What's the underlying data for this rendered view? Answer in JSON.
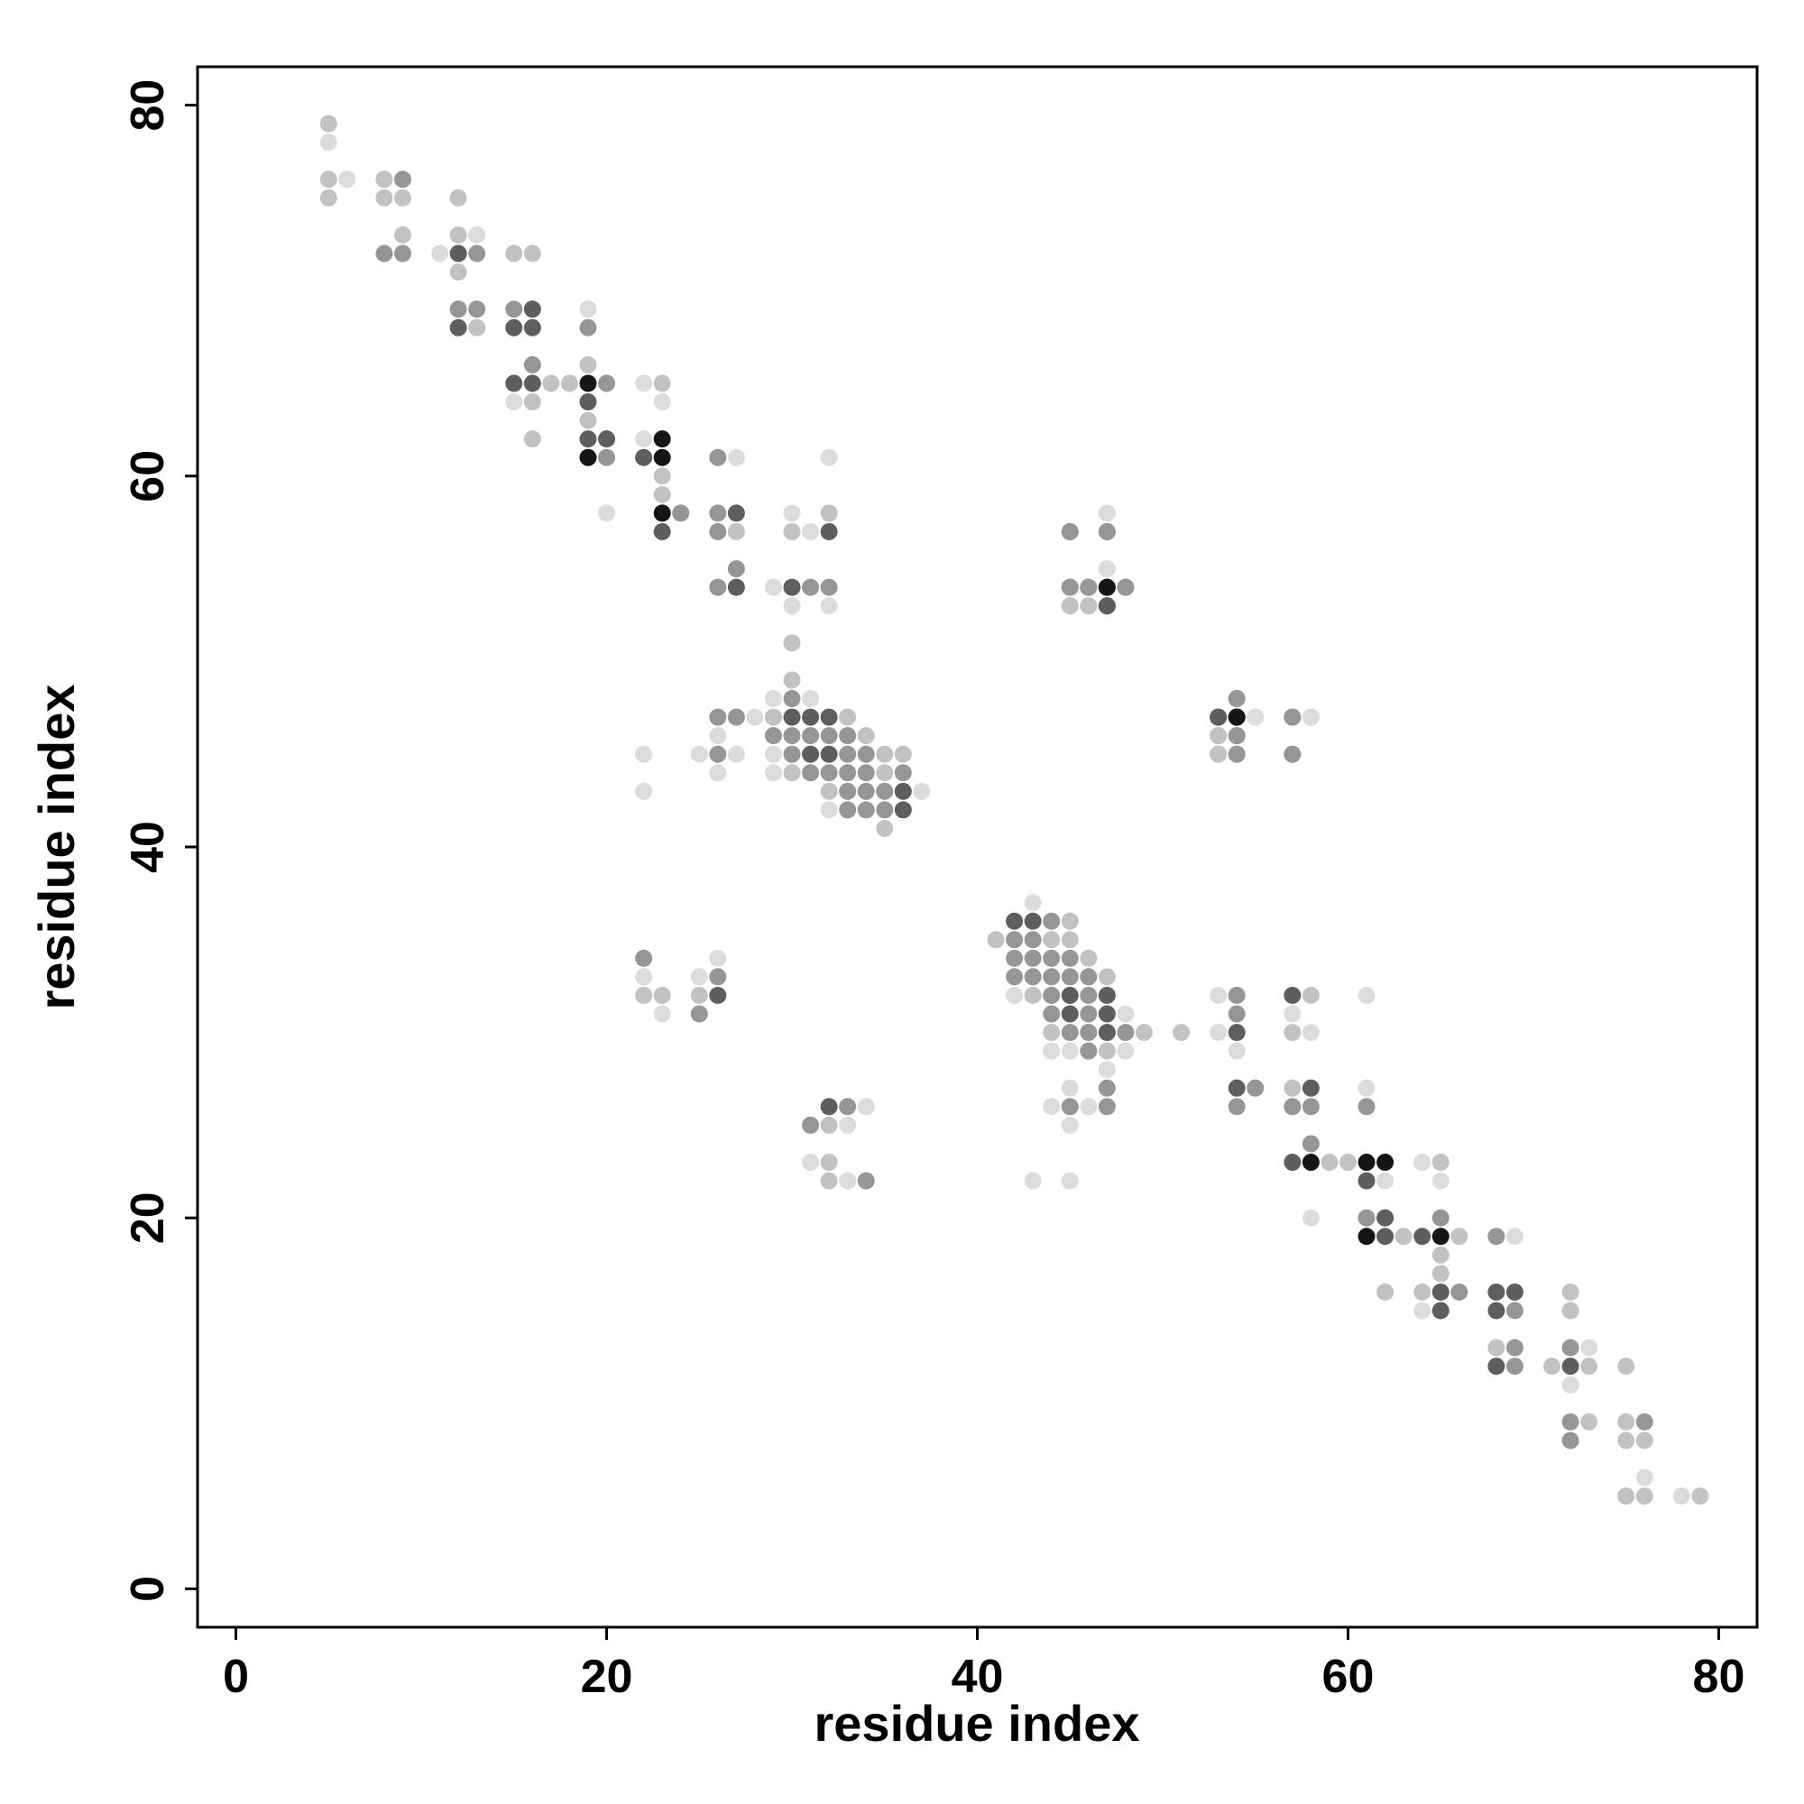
{
  "chart_data": {
    "type": "scatter",
    "x_label": "residue index",
    "y_label": "residue index",
    "xlim": [
      -2.07,
      82.07
    ],
    "ylim": [
      -2.07,
      82.07
    ],
    "xticks": [
      0,
      20,
      40,
      60,
      80
    ],
    "yticks": [
      0,
      20,
      40,
      60,
      80
    ],
    "grid": false,
    "series": [
      {
        "color": "#dcdcdc",
        "x": [
          5,
          6,
          13,
          11,
          19,
          22,
          15,
          23,
          22,
          27,
          32,
          20,
          30,
          47,
          31,
          47,
          29,
          30,
          32,
          29,
          31,
          28,
          55,
          58,
          26,
          22,
          25,
          27,
          29,
          26,
          29,
          22,
          37,
          32,
          26,
          22,
          25,
          23,
          78,
          76,
          73,
          72,
          69,
          65,
          64,
          64,
          62,
          61,
          61,
          58,
          58,
          58,
          57,
          55,
          54,
          53,
          53,
          48,
          48,
          47,
          47,
          47,
          46,
          45,
          45,
          45,
          45,
          44,
          44,
          43,
          43,
          42,
          34,
          33,
          33,
          31
        ],
        "y": [
          78,
          76,
          73,
          72,
          69,
          65,
          64,
          64,
          62,
          61,
          61,
          58,
          58,
          58,
          57,
          55,
          54,
          53,
          53,
          48,
          48,
          47,
          47,
          47,
          46,
          45,
          45,
          45,
          45,
          44,
          44,
          43,
          43,
          42,
          34,
          33,
          33,
          31,
          5,
          6,
          13,
          11,
          19,
          22,
          15,
          23,
          22,
          27,
          32,
          20,
          30,
          47,
          31,
          47,
          29,
          30,
          32,
          29,
          31,
          28,
          55,
          58,
          26,
          22,
          25,
          27,
          29,
          26,
          29,
          22,
          37,
          32,
          26,
          22,
          25,
          23
        ]
      },
      {
        "color": "#c2c2c2",
        "x": [
          5,
          5,
          8,
          5,
          8,
          9,
          12,
          9,
          12,
          15,
          16,
          12,
          13,
          19,
          17,
          18,
          23,
          16,
          19,
          16,
          23,
          23,
          32,
          27,
          30,
          45,
          46,
          30,
          30,
          29,
          33,
          34,
          53,
          35,
          36,
          53,
          30,
          35,
          32,
          35,
          22,
          23,
          25,
          79,
          76,
          76,
          75,
          75,
          75,
          75,
          73,
          73,
          72,
          72,
          71,
          68,
          66,
          65,
          65,
          65,
          64,
          63,
          62,
          60,
          59,
          58,
          57,
          57,
          53,
          53,
          51,
          49,
          47,
          47,
          46,
          46,
          45,
          45,
          45,
          44,
          44,
          43,
          41,
          32,
          32,
          32
        ],
        "y": [
          79,
          76,
          76,
          75,
          75,
          75,
          75,
          73,
          73,
          72,
          72,
          71,
          68,
          66,
          65,
          65,
          65,
          64,
          63,
          62,
          60,
          59,
          58,
          57,
          57,
          53,
          53,
          51,
          49,
          47,
          47,
          46,
          46,
          45,
          45,
          45,
          44,
          44,
          43,
          41,
          32,
          32,
          32,
          5,
          5,
          8,
          5,
          8,
          9,
          12,
          9,
          12,
          15,
          16,
          12,
          13,
          19,
          17,
          18,
          23,
          16,
          19,
          16,
          23,
          23,
          32,
          27,
          30,
          45,
          46,
          30,
          30,
          29,
          33,
          34,
          53,
          35,
          36,
          53,
          30,
          35,
          32,
          35,
          22,
          23,
          25
        ]
      },
      {
        "color": "#969696",
        "x": [
          9,
          8,
          9,
          13,
          12,
          13,
          15,
          19,
          16,
          20,
          20,
          26,
          24,
          26,
          26,
          45,
          47,
          27,
          26,
          31,
          32,
          45,
          46,
          48,
          30,
          54,
          26,
          27,
          57,
          29,
          30,
          31,
          32,
          33,
          54,
          26,
          30,
          33,
          34,
          54,
          57,
          31,
          32,
          33,
          34,
          36,
          33,
          34,
          35,
          33,
          34,
          35,
          22,
          26,
          25,
          76,
          72,
          72,
          72,
          69,
          69,
          69,
          68,
          66,
          65,
          61,
          61,
          58,
          58,
          57,
          57,
          57,
          55,
          54,
          54,
          54,
          54,
          54,
          54,
          48,
          48,
          47,
          47,
          47,
          46,
          46,
          46,
          46,
          46,
          46,
          45,
          45,
          45,
          45,
          45,
          45,
          44,
          44,
          44,
          44,
          44,
          43,
          43,
          43,
          42,
          42,
          42,
          34,
          33,
          31
        ],
        "y": [
          76,
          72,
          72,
          72,
          69,
          69,
          69,
          68,
          66,
          65,
          61,
          61,
          58,
          58,
          57,
          57,
          57,
          55,
          54,
          54,
          54,
          54,
          54,
          54,
          48,
          48,
          47,
          47,
          47,
          46,
          46,
          46,
          46,
          46,
          46,
          45,
          45,
          45,
          45,
          45,
          45,
          44,
          44,
          44,
          44,
          44,
          43,
          43,
          43,
          42,
          42,
          42,
          34,
          33,
          31,
          9,
          8,
          9,
          13,
          12,
          13,
          15,
          19,
          16,
          20,
          20,
          26,
          24,
          26,
          26,
          45,
          47,
          27,
          26,
          31,
          32,
          45,
          46,
          48,
          30,
          54,
          26,
          27,
          57,
          29,
          30,
          31,
          32,
          33,
          54,
          26,
          30,
          33,
          34,
          54,
          57,
          31,
          32,
          33,
          34,
          36,
          33,
          34,
          35,
          33,
          34,
          35,
          22,
          26,
          25
        ]
      },
      {
        "color": "#5e5e5e",
        "x": [
          12,
          16,
          12,
          15,
          16,
          15,
          16,
          19,
          19,
          20,
          22,
          27,
          23,
          32,
          27,
          30,
          47,
          30,
          31,
          32,
          53,
          31,
          32,
          36,
          36,
          26,
          72,
          69,
          68,
          68,
          68,
          65,
          65,
          64,
          62,
          62,
          61,
          58,
          57,
          57,
          54,
          54,
          53,
          47,
          47,
          47,
          47,
          45,
          45,
          43,
          42,
          32
        ],
        "y": [
          72,
          69,
          68,
          68,
          68,
          65,
          65,
          64,
          62,
          62,
          61,
          58,
          57,
          57,
          54,
          54,
          53,
          47,
          47,
          47,
          47,
          45,
          45,
          43,
          42,
          32,
          12,
          16,
          12,
          15,
          16,
          15,
          16,
          19,
          19,
          20,
          22,
          27,
          23,
          32,
          27,
          30,
          47,
          30,
          31,
          32,
          53,
          31,
          32,
          36,
          36,
          26
        ]
      },
      {
        "color": "#151515",
        "x": [
          19,
          23,
          19,
          23,
          23,
          47,
          54,
          65,
          62,
          61,
          61,
          58,
          54,
          47
        ],
        "y": [
          65,
          62,
          61,
          61,
          58,
          54,
          47,
          19,
          23,
          19,
          23,
          23,
          47,
          54
        ]
      }
    ]
  }
}
